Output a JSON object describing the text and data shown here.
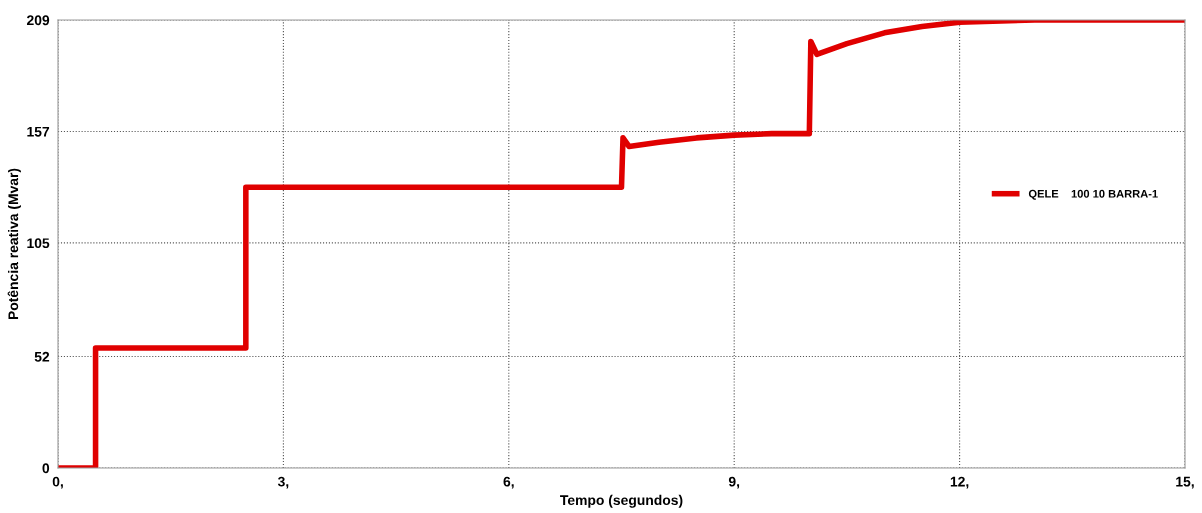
{
  "chart_data": {
    "type": "line",
    "xlabel": "Tempo (segundos)",
    "ylabel": "Potência reativa (Mvar)",
    "series": [
      {
        "name": "QELE    100 10 BARRA-1",
        "color": "#e00000",
        "x": [
          0,
          0.5,
          0.5,
          2.5,
          2.5,
          7.5,
          7.52,
          7.6,
          8,
          8.5,
          9,
          9.5,
          10,
          10.02,
          10.1,
          10.5,
          11,
          11.5,
          12,
          13,
          15
        ],
        "values": [
          0,
          0,
          56,
          56,
          131,
          131,
          154,
          150,
          152,
          154,
          155.3,
          156,
          156,
          199,
          193,
          198,
          203,
          206,
          208,
          209,
          209
        ]
      }
    ],
    "xlim": [
      0,
      15
    ],
    "ylim": [
      0,
      209
    ],
    "xticks": [
      {
        "value": 0,
        "label": "0,"
      },
      {
        "value": 3,
        "label": "3,"
      },
      {
        "value": 6,
        "label": "6,"
      },
      {
        "value": 9,
        "label": "9,"
      },
      {
        "value": 12,
        "label": "12,"
      },
      {
        "value": 15,
        "label": "15,"
      }
    ],
    "yticks": [
      0,
      52,
      105,
      157,
      209
    ],
    "grid": true,
    "legend": "right",
    "line_style": "solid",
    "marker": "none"
  }
}
